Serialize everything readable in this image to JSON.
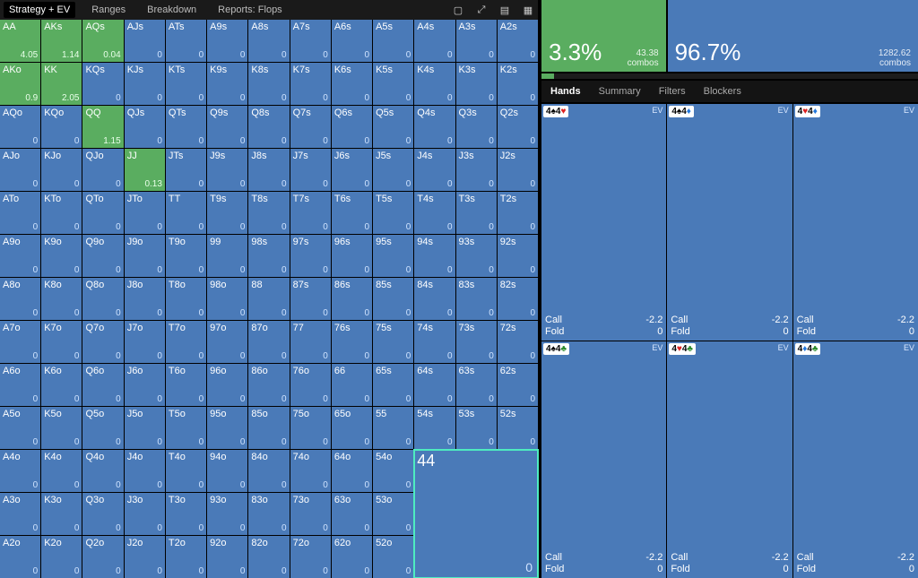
{
  "nav": {
    "items": [
      "Strategy + EV",
      "Ranges",
      "Breakdown",
      "Reports: Flops"
    ],
    "active": 0
  },
  "colors": {
    "cell_default": "#4a7ab8",
    "cell_highlight": "#5aad60",
    "selected_outline": "#4eecc0",
    "bg": "#000000"
  },
  "ranks": [
    "A",
    "K",
    "Q",
    "J",
    "T",
    "9",
    "8",
    "7",
    "6",
    "5",
    "4",
    "3",
    "2"
  ],
  "highlight_cells": [
    "AA",
    "AKs",
    "AQs",
    "AKo",
    "KK",
    "QQ",
    "JJ"
  ],
  "values": {
    "AA": "4.05",
    "AKs": "1.14",
    "AQs": "0.04",
    "AKo": "0.9",
    "KK": "2.05",
    "QQ": "1.15",
    "JJ": "0.13",
    "44_big": "0"
  },
  "selected": "44",
  "pct": {
    "a": {
      "pct": "3.3%",
      "combos": "43.38",
      "label": "combos"
    },
    "b": {
      "pct": "96.7%",
      "combos": "1282.62",
      "label": "combos"
    },
    "bar_fill_pct": 3.3
  },
  "tabs": {
    "items": [
      "Hands",
      "Summary",
      "Filters",
      "Blockers"
    ],
    "active": 0
  },
  "suit_glyph": {
    "s": "♠",
    "h": "♥",
    "d": "♦",
    "c": "♣"
  },
  "detail": {
    "ev_label": "EV",
    "action_rows": [
      {
        "name": "Call",
        "val": "-2.2"
      },
      {
        "name": "Fold",
        "val": "0"
      }
    ],
    "cells": [
      {
        "c1": {
          "r": "4",
          "s": "s"
        },
        "c2": {
          "r": "4",
          "s": "h"
        }
      },
      {
        "c1": {
          "r": "4",
          "s": "s"
        },
        "c2": {
          "r": "4",
          "s": "d"
        }
      },
      {
        "c1": {
          "r": "4",
          "s": "h"
        },
        "c2": {
          "r": "4",
          "s": "d"
        }
      },
      {
        "c1": {
          "r": "4",
          "s": "s"
        },
        "c2": {
          "r": "4",
          "s": "c"
        }
      },
      {
        "c1": {
          "r": "4",
          "s": "h"
        },
        "c2": {
          "r": "4",
          "s": "c"
        }
      },
      {
        "c1": {
          "r": "4",
          "s": "d"
        },
        "c2": {
          "r": "4",
          "s": "c"
        }
      }
    ]
  }
}
